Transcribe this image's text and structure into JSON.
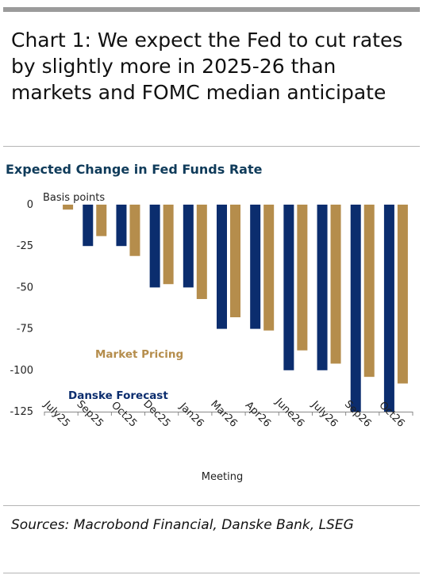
{
  "headline": "Chart 1: We expect the Fed to cut rates by slightly more in 2025-26 than markets and FOMC median anticipate",
  "sources": "Sources: Macrobond Financial, Danske Bank, LSEG",
  "colors": {
    "danske": "#0b2d6e",
    "market": "#b58d4c",
    "title": "#0f3b5a",
    "rule": "#9b9b9b"
  },
  "chart_data": {
    "type": "bar",
    "title": "Expected Change in Fed Funds Rate",
    "ylabel": "Basis points",
    "xlabel": "Meeting",
    "ylim": [
      -125,
      0
    ],
    "yticks": [
      0,
      -25,
      -50,
      -75,
      -100,
      -125
    ],
    "categories": [
      "July25",
      "Sep25",
      "Oct25",
      "Dec25",
      "Jan26",
      "Mar26",
      "Apr26",
      "June26",
      "July26",
      "Sep26",
      "Oct26"
    ],
    "series": [
      {
        "name": "Danske Forecast",
        "values": [
          0,
          -25,
          -25,
          -50,
          -50,
          -75,
          -75,
          -100,
          -100,
          -125,
          -125
        ]
      },
      {
        "name": "Market Pricing",
        "values": [
          -3,
          -19,
          -31,
          -48,
          -57,
          -68,
          -76,
          -88,
          -96,
          -104,
          -108
        ]
      }
    ],
    "legend": "inside-left",
    "grid": false
  }
}
